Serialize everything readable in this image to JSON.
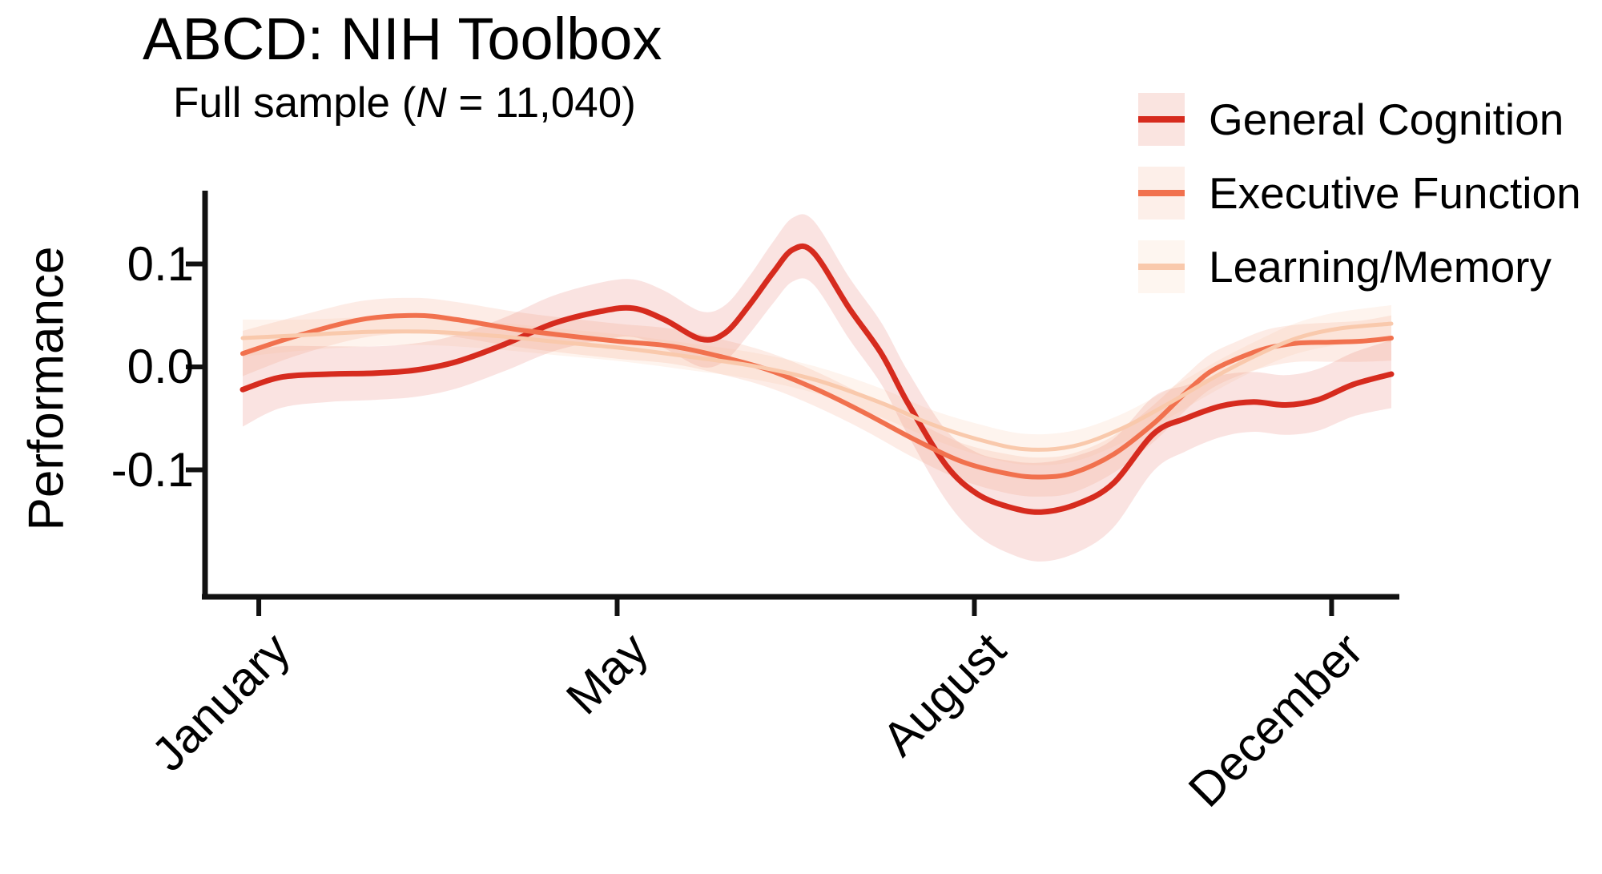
{
  "title": "ABCD: NIH Toolbox",
  "subtitle": {
    "prefix": "Full sample (",
    "n": "N",
    "suffix": " = 11,040)"
  },
  "axes": {
    "y": {
      "label": "Performance",
      "ticks": [
        {
          "label": "0.1",
          "value": 0.1
        },
        {
          "label": "0.0",
          "value": 0.0
        },
        {
          "label": "-0.1",
          "value": -0.1
        }
      ],
      "range": [
        -0.223,
        0.17
      ]
    },
    "x": {
      "ticks": [
        {
          "label": "January",
          "pos_pct": 1.4
        },
        {
          "label": "May",
          "pos_pct": 32.6
        },
        {
          "label": "August",
          "pos_pct": 63.7
        },
        {
          "label": "December",
          "pos_pct": 94.8
        }
      ]
    }
  },
  "legend": {
    "position": "top-right",
    "items": [
      {
        "label": "General Cognition",
        "line_color": "#D62B1E",
        "key_fill": "#FAE4E0"
      },
      {
        "label": "Executive Function",
        "line_color": "#F1714E",
        "key_fill": "#FDEFE9"
      },
      {
        "label": "Learning/Memory",
        "line_color": "#F9C9AC",
        "key_fill": "#FEF6F0"
      }
    ]
  },
  "chart_data": {
    "type": "line",
    "title": "ABCD: NIH Toolbox",
    "subtitle": "Full sample (N = 11,040)",
    "xlabel": "",
    "ylabel": "Performance",
    "ylim": [
      -0.223,
      0.17
    ],
    "grid": false,
    "x_unit": "percent of x-axis span; month ticks at January=1.4, May=32.6, August=63.7, December=94.8",
    "note": "each series is a smoothed seasonal performance curve with a shaded confidence ribbon; points are [x_pct, value, ribbon_half_width]",
    "series": [
      {
        "name": "General Cognition",
        "color": "#D62B1E",
        "ribbon_color": "rgba(220,60,45,0.14)",
        "stroke_width": 7,
        "points": [
          [
            0,
            -0.022,
            0.036
          ],
          [
            3.3,
            -0.01,
            0.03
          ],
          [
            7.5,
            -0.007,
            0.027
          ],
          [
            11.6,
            -0.006,
            0.026
          ],
          [
            15.1,
            -0.003,
            0.026
          ],
          [
            18.6,
            0.005,
            0.026
          ],
          [
            22.8,
            0.022,
            0.026
          ],
          [
            27.0,
            0.042,
            0.027
          ],
          [
            31.2,
            0.054,
            0.028
          ],
          [
            34.0,
            0.057,
            0.028
          ],
          [
            36.7,
            0.046,
            0.028
          ],
          [
            39.9,
            0.027,
            0.027
          ],
          [
            42.0,
            0.033,
            0.027
          ],
          [
            44.1,
            0.06,
            0.028
          ],
          [
            46.2,
            0.092,
            0.03
          ],
          [
            47.9,
            0.114,
            0.031
          ],
          [
            49.7,
            0.111,
            0.031
          ],
          [
            52.8,
            0.057,
            0.03
          ],
          [
            55.6,
            0.013,
            0.03
          ],
          [
            57.9,
            -0.035,
            0.031
          ],
          [
            61.2,
            -0.095,
            0.034
          ],
          [
            63.9,
            -0.123,
            0.04
          ],
          [
            66.7,
            -0.136,
            0.045
          ],
          [
            69.5,
            -0.141,
            0.048
          ],
          [
            72.7,
            -0.133,
            0.047
          ],
          [
            75.8,
            -0.113,
            0.043
          ],
          [
            79.3,
            -0.065,
            0.036
          ],
          [
            82.1,
            -0.05,
            0.032
          ],
          [
            85.2,
            -0.038,
            0.03
          ],
          [
            88.0,
            -0.034,
            0.029
          ],
          [
            90.8,
            -0.037,
            0.029
          ],
          [
            93.6,
            -0.032,
            0.03
          ],
          [
            96.7,
            -0.017,
            0.031
          ],
          [
            100,
            -0.007,
            0.033
          ]
        ]
      },
      {
        "name": "Executive Function",
        "color": "#F1714E",
        "ribbon_color": "rgba(242,125,90,0.15)",
        "stroke_width": 6,
        "points": [
          [
            0,
            0.013,
            0.022
          ],
          [
            4.7,
            0.03,
            0.019
          ],
          [
            10.3,
            0.046,
            0.018
          ],
          [
            15.1,
            0.05,
            0.017
          ],
          [
            18.6,
            0.046,
            0.017
          ],
          [
            23.5,
            0.037,
            0.017
          ],
          [
            27.7,
            0.031,
            0.017
          ],
          [
            32.6,
            0.025,
            0.017
          ],
          [
            37.4,
            0.02,
            0.017
          ],
          [
            41.6,
            0.01,
            0.017
          ],
          [
            45.8,
            -0.003,
            0.017
          ],
          [
            50.0,
            -0.022,
            0.017
          ],
          [
            54.2,
            -0.045,
            0.017
          ],
          [
            58.4,
            -0.07,
            0.018
          ],
          [
            62.6,
            -0.092,
            0.018
          ],
          [
            66.7,
            -0.104,
            0.019
          ],
          [
            69.5,
            -0.107,
            0.019
          ],
          [
            72.3,
            -0.103,
            0.019
          ],
          [
            75.8,
            -0.085,
            0.018
          ],
          [
            79.3,
            -0.055,
            0.018
          ],
          [
            82.1,
            -0.025,
            0.017
          ],
          [
            84.2,
            -0.005,
            0.017
          ],
          [
            86.6,
            0.008,
            0.017
          ],
          [
            89.1,
            0.018,
            0.018
          ],
          [
            91.8,
            0.023,
            0.018
          ],
          [
            94.6,
            0.024,
            0.019
          ],
          [
            97.4,
            0.025,
            0.02
          ],
          [
            100,
            0.028,
            0.022
          ]
        ]
      },
      {
        "name": "Learning/Memory",
        "color": "#F9C9AC",
        "ribbon_color": "rgba(248,185,150,0.16)",
        "stroke_width": 5,
        "points": [
          [
            0,
            0.028,
            0.018
          ],
          [
            5.4,
            0.031,
            0.015
          ],
          [
            10.9,
            0.034,
            0.014
          ],
          [
            16.5,
            0.034,
            0.013
          ],
          [
            22.1,
            0.03,
            0.013
          ],
          [
            27.7,
            0.024,
            0.013
          ],
          [
            33.3,
            0.018,
            0.013
          ],
          [
            38.8,
            0.01,
            0.013
          ],
          [
            44.4,
            0.001,
            0.013
          ],
          [
            50.0,
            -0.013,
            0.013
          ],
          [
            55.6,
            -0.035,
            0.014
          ],
          [
            59.8,
            -0.055,
            0.014
          ],
          [
            63.9,
            -0.07,
            0.015
          ],
          [
            68.1,
            -0.08,
            0.015
          ],
          [
            72.3,
            -0.077,
            0.015
          ],
          [
            76.5,
            -0.06,
            0.014
          ],
          [
            80.7,
            -0.035,
            0.014
          ],
          [
            84.9,
            -0.008,
            0.014
          ],
          [
            88.4,
            0.012,
            0.014
          ],
          [
            91.8,
            0.028,
            0.015
          ],
          [
            95.3,
            0.037,
            0.016
          ],
          [
            100,
            0.042,
            0.018
          ]
        ]
      }
    ]
  }
}
